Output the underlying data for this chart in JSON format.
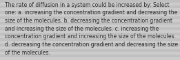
{
  "text_lines": [
    "The rate of diffusion in a system could be increased by: Select",
    "one: a. increasing the concentration gradient and decreasing the",
    "size of the molecules. b. decreasing the concentration gradient",
    "and increasing the size of the molecules. c. increasing the",
    "concentration gradient and increasing the size of the molecules.",
    "d. decreasing the concentration gradient and decreasing the size",
    "of the molecules."
  ],
  "bg_color_light": "#c8c8c8",
  "bg_color_dark": "#b8b8b8",
  "stripe_color1": "#cccccc",
  "stripe_color2": "#c0c0c0",
  "text_color": "#2a2a2a",
  "font_size": 5.5,
  "fig_width": 2.61,
  "fig_height": 0.88,
  "num_stripes": 22
}
